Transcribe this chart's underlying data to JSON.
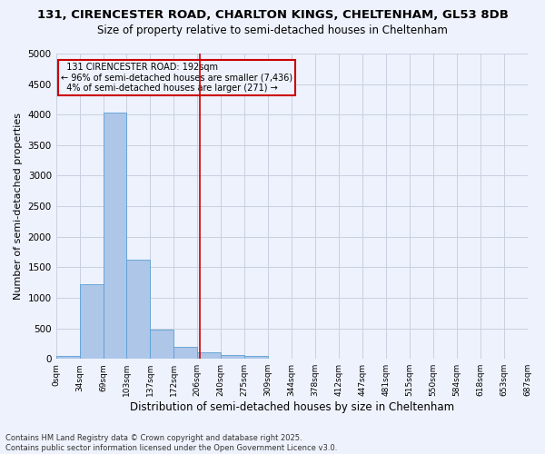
{
  "title_line1": "131, CIRENCESTER ROAD, CHARLTON KINGS, CHELTENHAM, GL53 8DB",
  "title_line2": "Size of property relative to semi-detached houses in Cheltenham",
  "xlabel": "Distribution of semi-detached houses by size in Cheltenham",
  "ylabel": "Number of semi-detached properties",
  "bin_labels": [
    "0sqm",
    "34sqm",
    "69sqm",
    "103sqm",
    "137sqm",
    "172sqm",
    "206sqm",
    "240sqm",
    "275sqm",
    "309sqm",
    "344sqm",
    "378sqm",
    "412sqm",
    "447sqm",
    "481sqm",
    "515sqm",
    "550sqm",
    "584sqm",
    "618sqm",
    "653sqm",
    "687sqm"
  ],
  "bar_values": [
    50,
    1230,
    4040,
    1630,
    480,
    195,
    100,
    65,
    50,
    0,
    0,
    0,
    0,
    0,
    0,
    0,
    0,
    0,
    0,
    0
  ],
  "bar_color": "#aec6e8",
  "bar_edge_color": "#5a9fd4",
  "subject_label": "131 CIRENCESTER ROAD: 192sqm",
  "pct_smaller": "96% of semi-detached houses are smaller (7,436)",
  "pct_larger": "4% of semi-detached houses are larger (271)",
  "annotation_box_color": "#cc0000",
  "vline_color": "#cc0000",
  "ylim": [
    0,
    5000
  ],
  "yticks": [
    0,
    500,
    1000,
    1500,
    2000,
    2500,
    3000,
    3500,
    4000,
    4500,
    5000
  ],
  "grid_color": "#c8d0e0",
  "background_color": "#eef2fc",
  "footer": "Contains HM Land Registry data © Crown copyright and database right 2025.\nContains public sector information licensed under the Open Government Licence v3.0."
}
